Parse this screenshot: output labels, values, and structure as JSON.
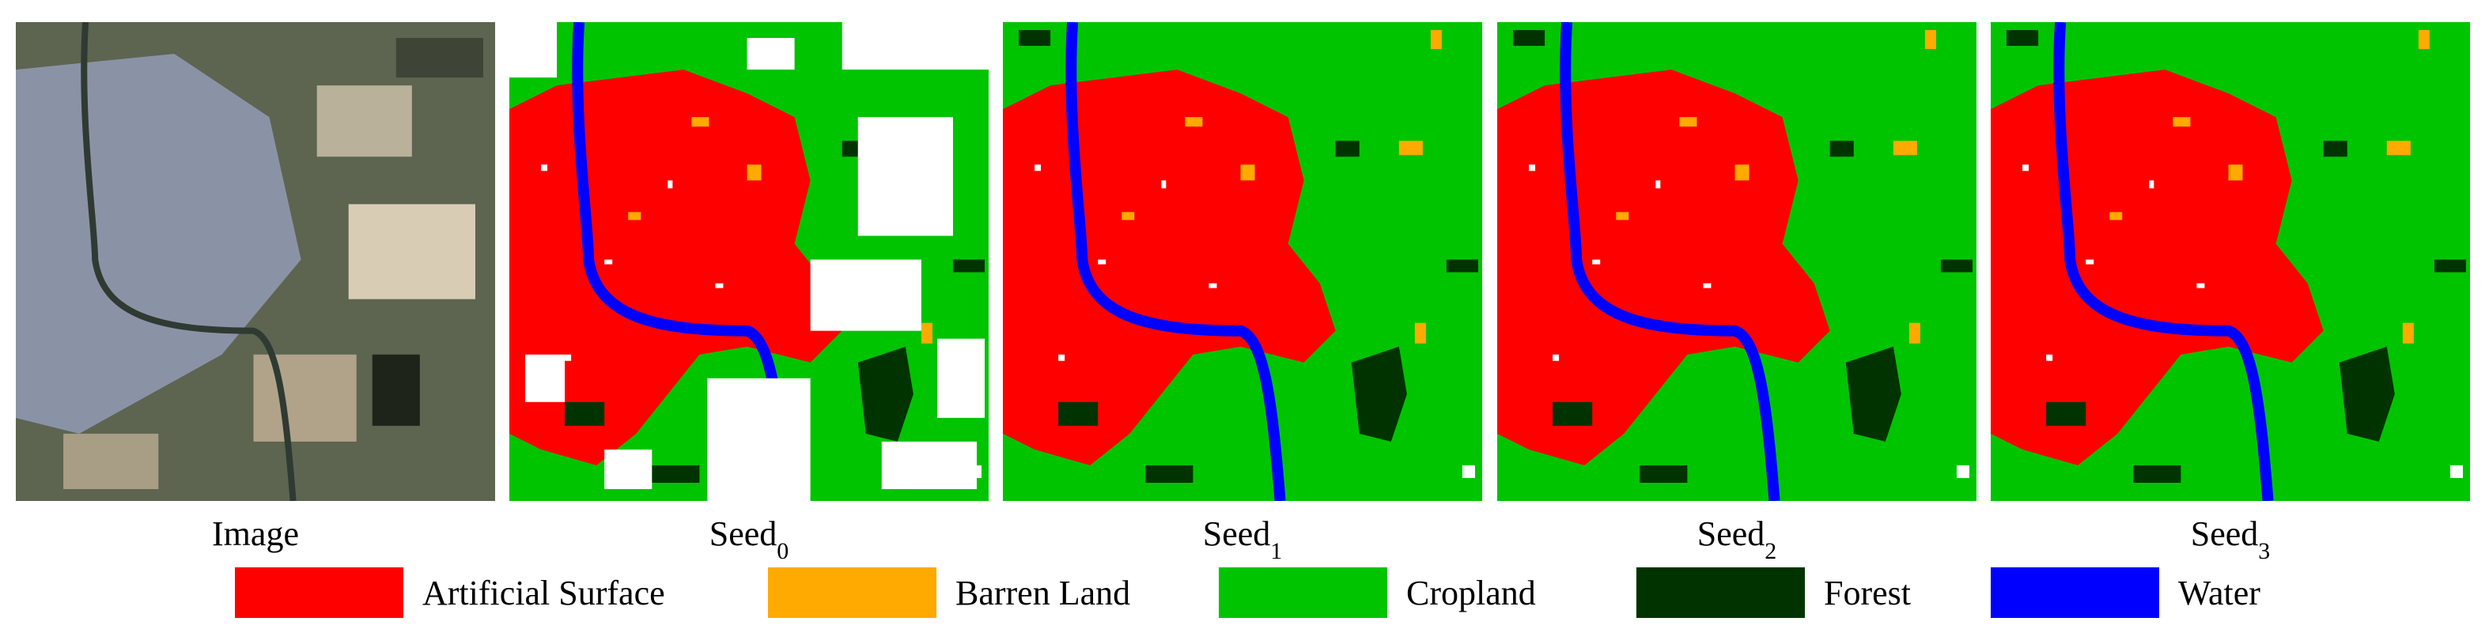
{
  "panels": [
    {
      "label": "Image"
    },
    {
      "label": "Seed",
      "subscript": "0"
    },
    {
      "label": "Seed",
      "subscript": "1"
    },
    {
      "label": "Seed",
      "subscript": "2"
    },
    {
      "label": "Seed",
      "subscript": "3"
    }
  ],
  "legend": [
    {
      "name": "Artificial Surface",
      "color": "#ff0000"
    },
    {
      "name": "Barren Land",
      "color": "#ffaa00"
    },
    {
      "name": "Cropland",
      "color": "#00c400"
    },
    {
      "name": "Forest",
      "color": "#003300"
    },
    {
      "name": "Water",
      "color": "#0000ff"
    }
  ]
}
